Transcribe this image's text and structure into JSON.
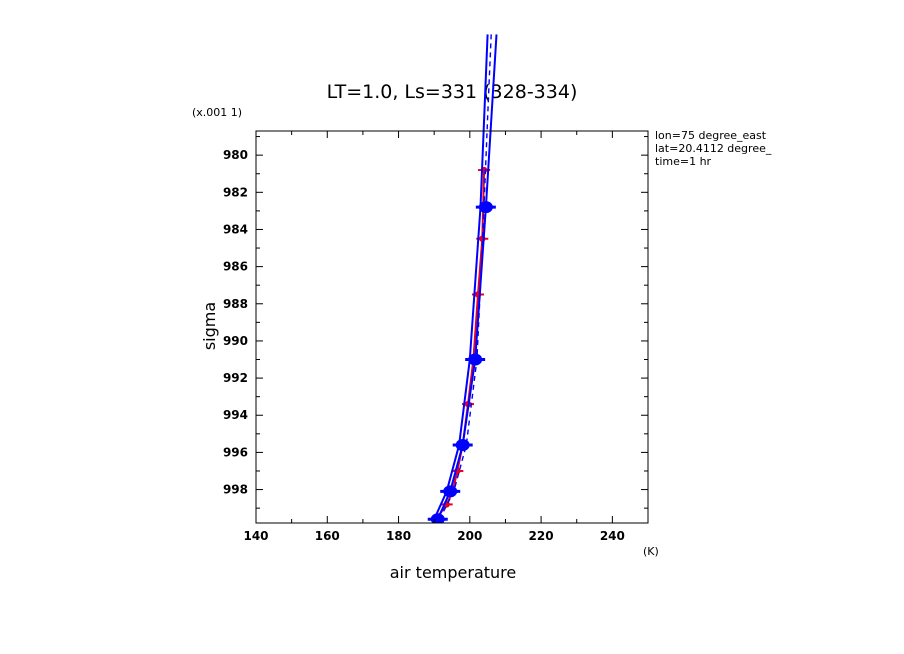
{
  "chart_data": {
    "type": "line",
    "title": "LT=1.0, Ls=331 (328-334)",
    "xlabel": "air temperature",
    "xunit": "(K)",
    "ylabel": "sigma",
    "yscale_note": "(x.001 1)",
    "xlim": [
      140,
      250
    ],
    "ylim": [
      999.8,
      978.7
    ],
    "y_inverted": true,
    "grid": false,
    "xticks": [
      140,
      160,
      180,
      200,
      220,
      240
    ],
    "yticks": [
      980,
      982,
      984,
      986,
      988,
      990,
      992,
      994,
      996,
      998
    ],
    "annotations": [
      "lon=75 degree_east",
      "lat=20.4112 degree_",
      "time=1 hr"
    ],
    "series": [
      {
        "color": "#e8001c",
        "style": "line-markers",
        "points": [
          {
            "x": 190.5,
            "y": 999.6
          },
          {
            "x": 193.5,
            "y": 998.8
          },
          {
            "x": 195.2,
            "y": 998.1
          },
          {
            "x": 196.5,
            "y": 997.0
          },
          {
            "x": 198.0,
            "y": 995.6
          },
          {
            "x": 199.5,
            "y": 993.4
          },
          {
            "x": 201.0,
            "y": 991.0
          },
          {
            "x": 202.3,
            "y": 987.5
          },
          {
            "x": 203.5,
            "y": 984.5
          },
          {
            "x": 204.0,
            "y": 980.8
          }
        ]
      },
      {
        "color": "#0000ff",
        "style": "line-markers",
        "points": [
          {
            "x": 191.0,
            "y": 999.6
          },
          {
            "x": 194.5,
            "y": 998.1
          },
          {
            "x": 198.0,
            "y": 995.6
          },
          {
            "x": 201.5,
            "y": 991.0
          },
          {
            "x": 204.5,
            "y": 982.8
          },
          {
            "x": 207.5,
            "y": 973.5
          }
        ]
      },
      {
        "color": "#0000ff",
        "style": "dashed",
        "points": [
          {
            "x": 191.5,
            "y": 999.6
          },
          {
            "x": 195.5,
            "y": 998.1
          },
          {
            "x": 199.0,
            "y": 995.6
          },
          {
            "x": 202.0,
            "y": 991.0
          },
          {
            "x": 203.5,
            "y": 985.0
          },
          {
            "x": 205.0,
            "y": 978.0
          },
          {
            "x": 206.0,
            "y": 973.5
          }
        ]
      },
      {
        "color": "#0000ff",
        "style": "line",
        "points": [
          {
            "x": 190.0,
            "y": 999.6
          },
          {
            "x": 193.5,
            "y": 998.1
          },
          {
            "x": 197.0,
            "y": 995.6
          },
          {
            "x": 200.0,
            "y": 991.0
          },
          {
            "x": 203.0,
            "y": 982.8
          },
          {
            "x": 205.0,
            "y": 973.5
          }
        ]
      }
    ]
  }
}
